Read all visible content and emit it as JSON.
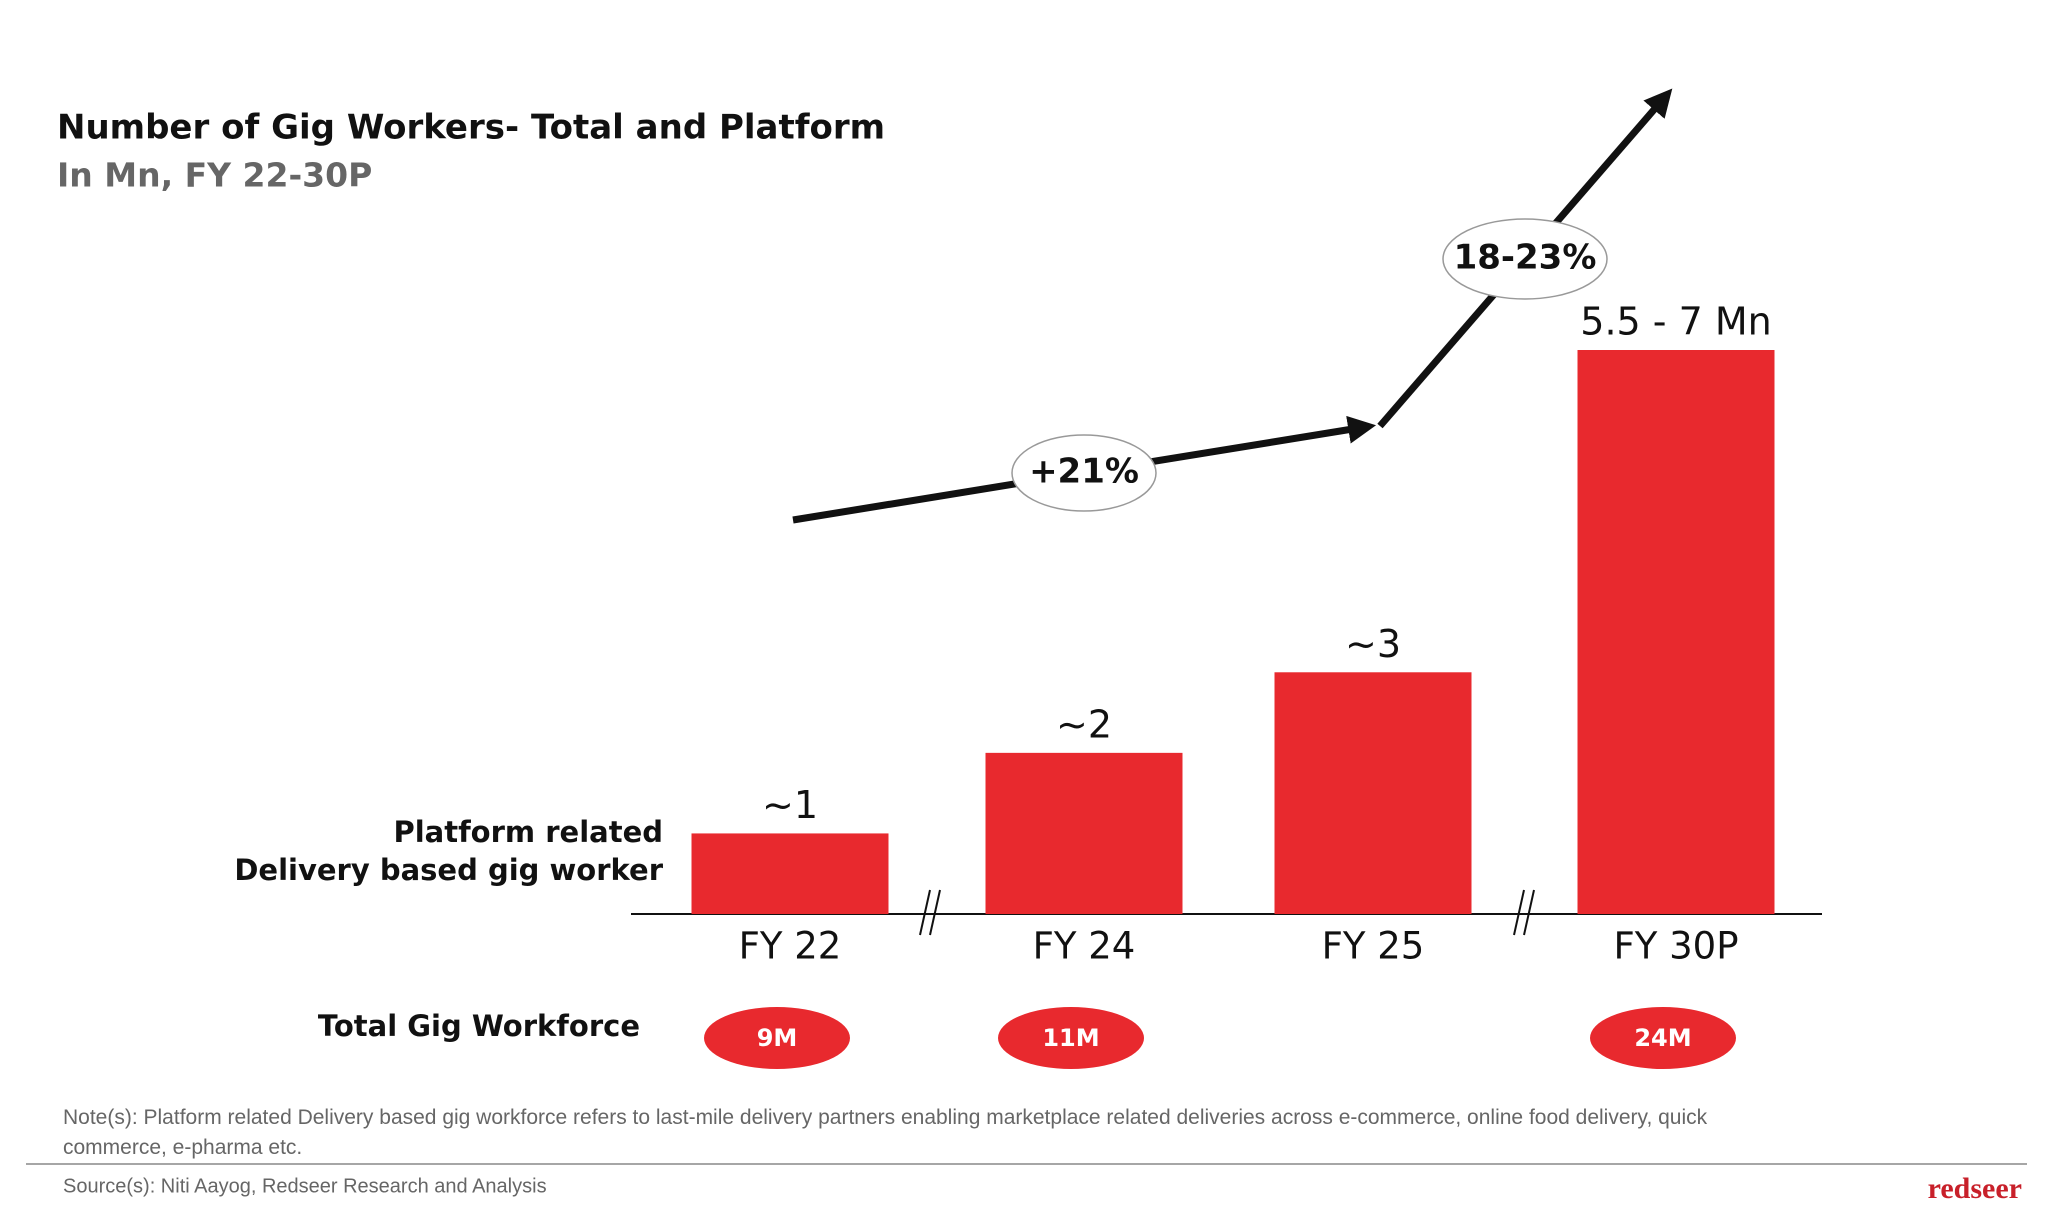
{
  "chart_data": {
    "type": "bar",
    "title": "Number of Gig Workers- Total and Platform",
    "subtitle": "In Mn, FY 22-30P",
    "series_label": [
      "Platform related",
      "Delivery based gig worker"
    ],
    "categories": [
      "FY 22",
      "FY 24",
      "FY 25",
      "FY 30P"
    ],
    "values": [
      1,
      2,
      3,
      7
    ],
    "value_labels": [
      "~1",
      "~2",
      "~3",
      "5.5 - 7 Mn"
    ],
    "color": "#e8292e",
    "ylim": [
      0,
      7
    ],
    "annotations": [
      "+21%",
      "18-23%"
    ],
    "total_workforce": {
      "label": "Total Gig Workforce",
      "values": [
        9,
        11,
        null,
        24
      ],
      "value_labels": [
        "9M",
        "11M",
        null,
        "24M"
      ]
    }
  },
  "footer": {
    "note": "Note(s): Platform related Delivery based gig workforce refers to last-mile delivery partners enabling marketplace related deliveries across e-commerce, online food delivery, quick commerce, e-pharma etc.",
    "source": "Source(s): Niti Aayog, Redseer Research and Analysis",
    "logo": "redseer"
  }
}
